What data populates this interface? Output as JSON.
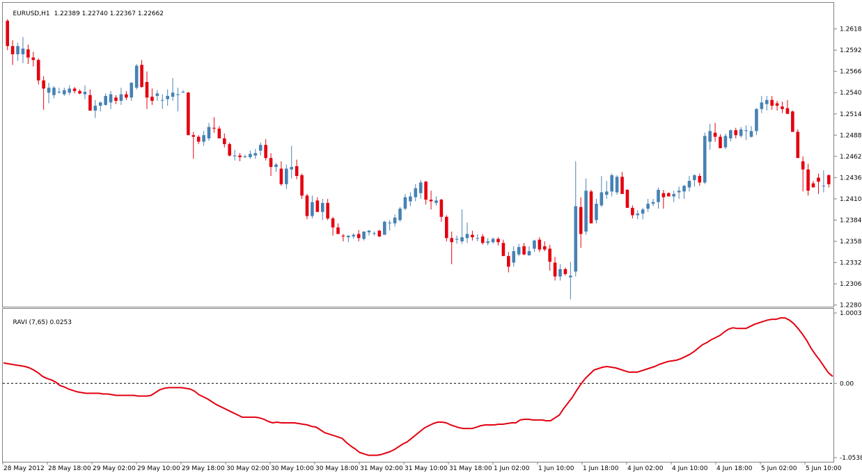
{
  "symbol_label": "EURUSD,H1",
  "ohlc_label": "1.22389 1.22740 1.22367 1.22662",
  "indicator_label": "RAVI (7,65) 0.0253",
  "colors": {
    "up": "#4682b4",
    "down": "#e4000f",
    "line": "#e4000f",
    "grid": "#808080",
    "frame": "#808080"
  },
  "chart_data": [
    {
      "type": "candlestick",
      "title": "EURUSD,H1",
      "y_ticks": [
        "1.26180",
        "1.25920",
        "1.25660",
        "1.25400",
        "1.25140",
        "1.24880",
        "1.24620",
        "1.24360",
        "1.24100",
        "1.23840",
        "1.23580",
        "1.23320",
        "1.23060",
        "1.22800"
      ],
      "ylim": [
        1.2278,
        1.265
      ],
      "x_ticks": [
        "28 May 2012",
        "28 May 18:00",
        "29 May 02:00",
        "29 May 10:00",
        "29 May 18:00",
        "30 May 02:00",
        "30 May 10:00",
        "30 May 18:00",
        "31 May 02:00",
        "31 May 10:00",
        "31 May 18:00",
        "1 Jun 02:00",
        "1 Jun 10:00",
        "1 Jun 18:00",
        "4 Jun 02:00",
        "4 Jun 10:00",
        "4 Jun 18:00",
        "5 Jun 02:00",
        "5 Jun 10:00"
      ],
      "current_bar": {
        "open": 1.22389,
        "high": 1.2274,
        "low": 1.22367,
        "close": 1.22662
      },
      "ohlc": [
        [
          1.2628,
          1.263,
          1.2592,
          1.2597
        ],
        [
          1.2597,
          1.2604,
          1.2574,
          1.2587
        ],
        [
          1.2587,
          1.2601,
          1.2579,
          1.2597
        ],
        [
          1.2587,
          1.2608,
          1.2576,
          1.2594
        ],
        [
          1.2593,
          1.2599,
          1.2575,
          1.2583
        ],
        [
          1.2583,
          1.259,
          1.2572,
          1.258
        ],
        [
          1.258,
          1.2582,
          1.255,
          1.2555
        ],
        [
          1.2555,
          1.256,
          1.2519,
          1.2545
        ],
        [
          1.254,
          1.2552,
          1.2527,
          1.2546
        ],
        [
          1.2537,
          1.2548,
          1.2533,
          1.2546
        ],
        [
          1.2541,
          1.2546,
          1.2539,
          1.2541
        ],
        [
          1.2538,
          1.2546,
          1.2536,
          1.2543
        ],
        [
          1.254,
          1.2549,
          1.2537,
          1.2545
        ],
        [
          1.2545,
          1.2547,
          1.2539,
          1.2542
        ],
        [
          1.2542,
          1.2544,
          1.2538,
          1.2539
        ],
        [
          1.2538,
          1.2549,
          1.2532,
          1.2541
        ],
        [
          1.2537,
          1.2544,
          1.2518,
          1.2518
        ],
        [
          1.2518,
          1.2531,
          1.2509,
          1.2524
        ],
        [
          1.2524,
          1.2529,
          1.2517,
          1.2528
        ],
        [
          1.2525,
          1.2539,
          1.2524,
          1.2536
        ],
        [
          1.2528,
          1.2542,
          1.252,
          1.2538
        ],
        [
          1.2534,
          1.2537,
          1.2526,
          1.253
        ],
        [
          1.253,
          1.2546,
          1.2525,
          1.2538
        ],
        [
          1.2538,
          1.2542,
          1.2531,
          1.2534
        ],
        [
          1.2534,
          1.2553,
          1.253,
          1.2552
        ],
        [
          1.2546,
          1.2575,
          1.2544,
          1.2573
        ],
        [
          1.2574,
          1.258,
          1.2546,
          1.2547
        ],
        [
          1.2553,
          1.2566,
          1.252,
          1.2534
        ],
        [
          1.2535,
          1.2545,
          1.2525,
          1.253
        ],
        [
          1.2536,
          1.2543,
          1.253,
          1.2539
        ],
        [
          1.2531,
          1.2538,
          1.252,
          1.2531
        ],
        [
          1.2532,
          1.2544,
          1.2524,
          1.2536
        ],
        [
          1.2535,
          1.2558,
          1.253,
          1.254
        ],
        [
          1.2537,
          1.2546,
          1.2517,
          1.2538
        ],
        [
          1.254,
          1.2543,
          1.254,
          1.2541
        ],
        [
          1.254,
          1.2541,
          1.2488,
          1.2488
        ],
        [
          1.2488,
          1.2492,
          1.2459,
          1.2486
        ],
        [
          1.2486,
          1.2488,
          1.2477,
          1.248
        ],
        [
          1.248,
          1.2493,
          1.2475,
          1.2488
        ],
        [
          1.2484,
          1.2503,
          1.2481,
          1.2498
        ],
        [
          1.2497,
          1.251,
          1.2491,
          1.2496
        ],
        [
          1.2496,
          1.2499,
          1.2484,
          1.2484
        ],
        [
          1.2484,
          1.249,
          1.2473,
          1.2477
        ],
        [
          1.2477,
          1.2479,
          1.2462,
          1.2463
        ],
        [
          1.2463,
          1.247,
          1.2457,
          1.2463
        ],
        [
          1.2463,
          1.2466,
          1.2456,
          1.2461
        ],
        [
          1.2461,
          1.2464,
          1.246,
          1.2462
        ],
        [
          1.2461,
          1.2469,
          1.2459,
          1.2465
        ],
        [
          1.2463,
          1.2471,
          1.2459,
          1.2466
        ],
        [
          1.2469,
          1.2479,
          1.2463,
          1.2476
        ],
        [
          1.2476,
          1.2483,
          1.2457,
          1.246
        ],
        [
          1.246,
          1.2466,
          1.2438,
          1.2449
        ],
        [
          1.2449,
          1.2454,
          1.2443,
          1.2452
        ],
        [
          1.2447,
          1.2456,
          1.2426,
          1.2428
        ],
        [
          1.2428,
          1.2452,
          1.2422,
          1.2447
        ],
        [
          1.2446,
          1.2475,
          1.2435,
          1.2449
        ],
        [
          1.245,
          1.2458,
          1.2434,
          1.2438
        ],
        [
          1.2439,
          1.2441,
          1.241,
          1.2414
        ],
        [
          1.2414,
          1.2416,
          1.2385,
          1.2389
        ],
        [
          1.2389,
          1.2414,
          1.2386,
          1.2406
        ],
        [
          1.2408,
          1.2412,
          1.2394,
          1.2394
        ],
        [
          1.2394,
          1.241,
          1.2384,
          1.2405
        ],
        [
          1.2405,
          1.241,
          1.2384,
          1.2386
        ],
        [
          1.2386,
          1.2388,
          1.2365,
          1.2375
        ],
        [
          1.2375,
          1.238,
          1.2367,
          1.2367
        ],
        [
          1.2365,
          1.2367,
          1.2358,
          1.2364
        ],
        [
          1.2363,
          1.2365,
          1.2357,
          1.2365
        ],
        [
          1.2364,
          1.2368,
          1.2361,
          1.2366
        ],
        [
          1.2367,
          1.2372,
          1.2358,
          1.2362
        ],
        [
          1.2361,
          1.237,
          1.2359,
          1.237
        ],
        [
          1.2369,
          1.2372,
          1.2365,
          1.2371
        ],
        [
          1.2368,
          1.237,
          1.2365,
          1.2368
        ],
        [
          1.2371,
          1.2372,
          1.2363,
          1.2364
        ],
        [
          1.2366,
          1.2383,
          1.2366,
          1.2382
        ],
        [
          1.238,
          1.2384,
          1.2371,
          1.2381
        ],
        [
          1.238,
          1.2391,
          1.2376,
          1.2387
        ],
        [
          1.2384,
          1.24,
          1.2382,
          1.2398
        ],
        [
          1.2398,
          1.2416,
          1.2396,
          1.2412
        ],
        [
          1.2407,
          1.2418,
          1.2401,
          1.2413
        ],
        [
          1.2412,
          1.2428,
          1.2407,
          1.2423
        ],
        [
          1.2417,
          1.2433,
          1.241,
          1.243
        ],
        [
          1.2431,
          1.2432,
          1.2403,
          1.2409
        ],
        [
          1.2409,
          1.242,
          1.2397,
          1.2407
        ],
        [
          1.2405,
          1.2413,
          1.2402,
          1.2408
        ],
        [
          1.2409,
          1.241,
          1.2382,
          1.2388
        ],
        [
          1.2388,
          1.239,
          1.2358,
          1.2362
        ],
        [
          1.2362,
          1.237,
          1.233,
          1.2357
        ],
        [
          1.236,
          1.2365,
          1.2355,
          1.2361
        ],
        [
          1.2358,
          1.2397,
          1.2355,
          1.2363
        ],
        [
          1.2362,
          1.2381,
          1.2356,
          1.2367
        ],
        [
          1.2366,
          1.2371,
          1.2359,
          1.2363
        ],
        [
          1.2362,
          1.2367,
          1.2358,
          1.2362
        ],
        [
          1.2364,
          1.2367,
          1.2354,
          1.2356
        ],
        [
          1.2356,
          1.2362,
          1.2353,
          1.2358
        ],
        [
          1.2357,
          1.2363,
          1.2355,
          1.2361
        ],
        [
          1.2361,
          1.2363,
          1.2353,
          1.2357
        ],
        [
          1.2356,
          1.236,
          1.234,
          1.234
        ],
        [
          1.234,
          1.2345,
          1.232,
          1.2327
        ],
        [
          1.2332,
          1.2352,
          1.2327,
          1.2346
        ],
        [
          1.2342,
          1.2355,
          1.234,
          1.2351
        ],
        [
          1.2352,
          1.2356,
          1.2341,
          1.2342
        ],
        [
          1.2341,
          1.2352,
          1.234,
          1.2346
        ],
        [
          1.2349,
          1.236,
          1.2345,
          1.2359
        ],
        [
          1.236,
          1.2363,
          1.2345,
          1.2348
        ],
        [
          1.2352,
          1.2358,
          1.2346,
          1.2348
        ],
        [
          1.2349,
          1.2354,
          1.2322,
          1.2333
        ],
        [
          1.2332,
          1.2339,
          1.231,
          1.2315
        ],
        [
          1.2315,
          1.233,
          1.231,
          1.2324
        ],
        [
          1.2324,
          1.2326,
          1.2316,
          1.2318
        ],
        [
          1.2314,
          1.2333,
          1.2287,
          1.2316
        ],
        [
          1.2321,
          1.2456,
          1.2315,
          1.2401
        ],
        [
          1.24,
          1.2412,
          1.235,
          1.2367
        ],
        [
          1.237,
          1.2435,
          1.2366,
          1.242
        ],
        [
          1.2419,
          1.2421,
          1.238,
          1.238
        ],
        [
          1.2384,
          1.241,
          1.238,
          1.2404
        ],
        [
          1.2402,
          1.2438,
          1.24,
          1.2418
        ],
        [
          1.2415,
          1.2432,
          1.241,
          1.2419
        ],
        [
          1.2419,
          1.2441,
          1.2413,
          1.2439
        ],
        [
          1.2418,
          1.2439,
          1.2415,
          1.2437
        ],
        [
          1.2437,
          1.2443,
          1.2416,
          1.2416
        ],
        [
          1.2421,
          1.2422,
          1.2399,
          1.2399
        ],
        [
          1.2399,
          1.2402,
          1.2386,
          1.239
        ],
        [
          1.239,
          1.2396,
          1.2385,
          1.2392
        ],
        [
          1.2392,
          1.2399,
          1.2385,
          1.2397
        ],
        [
          1.2398,
          1.241,
          1.2394,
          1.2404
        ],
        [
          1.2404,
          1.241,
          1.2401,
          1.2406
        ],
        [
          1.2406,
          1.2424,
          1.2398,
          1.2421
        ],
        [
          1.2417,
          1.2421,
          1.2398,
          1.2412
        ],
        [
          1.2417,
          1.2418,
          1.2413,
          1.2413
        ],
        [
          1.2413,
          1.242,
          1.2406,
          1.2416
        ],
        [
          1.2418,
          1.2425,
          1.241,
          1.242
        ],
        [
          1.2419,
          1.2427,
          1.241,
          1.2426
        ],
        [
          1.2424,
          1.2438,
          1.2419,
          1.2432
        ],
        [
          1.2433,
          1.244,
          1.2425,
          1.2439
        ],
        [
          1.2438,
          1.2441,
          1.2426,
          1.243
        ],
        [
          1.243,
          1.2491,
          1.2428,
          1.2487
        ],
        [
          1.248,
          1.2502,
          1.247,
          1.2493
        ],
        [
          1.2491,
          1.2503,
          1.248,
          1.2486
        ],
        [
          1.2486,
          1.2489,
          1.2472,
          1.2472
        ],
        [
          1.2473,
          1.249,
          1.2471,
          1.2487
        ],
        [
          1.2484,
          1.2495,
          1.248,
          1.2494
        ],
        [
          1.2494,
          1.2497,
          1.2484,
          1.2488
        ],
        [
          1.2487,
          1.2498,
          1.2485,
          1.2495
        ],
        [
          1.2493,
          1.25,
          1.2482,
          1.2494
        ],
        [
          1.2486,
          1.2499,
          1.2485,
          1.2493
        ],
        [
          1.2493,
          1.2521,
          1.2488,
          1.252
        ],
        [
          1.252,
          1.2536,
          1.2515,
          1.2528
        ],
        [
          1.2526,
          1.2536,
          1.2518,
          1.2531
        ],
        [
          1.2531,
          1.2536,
          1.2519,
          1.2524
        ],
        [
          1.2527,
          1.253,
          1.2518,
          1.2524
        ],
        [
          1.2523,
          1.2529,
          1.2515,
          1.252
        ],
        [
          1.2521,
          1.2531,
          1.2514,
          1.2514
        ],
        [
          1.2517,
          1.2518,
          1.2493,
          1.2492
        ],
        [
          1.2492,
          1.2495,
          1.246,
          1.246
        ],
        [
          1.2456,
          1.2462,
          1.2419,
          1.2446
        ],
        [
          1.2446,
          1.2453,
          1.2414,
          1.242
        ],
        [
          1.2429,
          1.2432,
          1.2424,
          1.2424
        ],
        [
          1.2436,
          1.2441,
          1.2416,
          1.2431
        ],
        [
          1.2426,
          1.2445,
          1.2418,
          1.2426
        ],
        [
          1.2439,
          1.244,
          1.2424,
          1.2428
        ]
      ]
    },
    {
      "type": "line",
      "title": "RAVI (7,65) 0.0253",
      "y_ticks": [
        "1.0003",
        "0.00",
        "-1.0538"
      ],
      "ylim": [
        -1.0538,
        1.0003
      ],
      "reference_line": 0.0,
      "series": [
        {
          "values": [
            0.29,
            0.28,
            0.27,
            0.26,
            0.25,
            0.24,
            0.22,
            0.19,
            0.15,
            0.1,
            0.07,
            0.05,
            0.02,
            -0.03,
            -0.05,
            -0.08,
            -0.1,
            -0.12,
            -0.13,
            -0.14,
            -0.14,
            -0.14,
            -0.14,
            -0.15,
            -0.15,
            -0.16,
            -0.17,
            -0.17,
            -0.17,
            -0.17,
            -0.17,
            -0.18,
            -0.18,
            -0.18,
            -0.17,
            -0.13,
            -0.09,
            -0.07,
            -0.06,
            -0.06,
            -0.06,
            -0.06,
            -0.07,
            -0.08,
            -0.11,
            -0.16,
            -0.19,
            -0.22,
            -0.26,
            -0.3,
            -0.33,
            -0.36,
            -0.39,
            -0.42,
            -0.45,
            -0.48,
            -0.48,
            -0.48,
            -0.48,
            -0.49,
            -0.51,
            -0.54,
            -0.56,
            -0.55,
            -0.56,
            -0.56,
            -0.56,
            -0.56,
            -0.57,
            -0.58,
            -0.59,
            -0.61,
            -0.62,
            -0.66,
            -0.7,
            -0.72,
            -0.74,
            -0.76,
            -0.78,
            -0.84,
            -0.89,
            -0.93,
            -0.98,
            -1.0,
            -1.02,
            -1.02,
            -1.02,
            -1.01,
            -0.99,
            -0.97,
            -0.94,
            -0.9,
            -0.86,
            -0.83,
            -0.78,
            -0.73,
            -0.68,
            -0.63,
            -0.6,
            -0.57,
            -0.55,
            -0.55,
            -0.56,
            -0.59,
            -0.61,
            -0.63,
            -0.64,
            -0.64,
            -0.64,
            -0.62,
            -0.6,
            -0.59,
            -0.59,
            -0.59,
            -0.58,
            -0.58,
            -0.57,
            -0.56,
            -0.56,
            -0.52,
            -0.51,
            -0.51,
            -0.52,
            -0.52,
            -0.52,
            -0.53,
            -0.53,
            -0.49,
            -0.45,
            -0.36,
            -0.28,
            -0.2,
            -0.1,
            -0.01,
            0.07,
            0.13,
            0.19,
            0.21,
            0.23,
            0.24,
            0.23,
            0.22,
            0.2,
            0.18,
            0.16,
            0.16,
            0.16,
            0.18,
            0.2,
            0.22,
            0.24,
            0.27,
            0.29,
            0.31,
            0.32,
            0.33,
            0.35,
            0.38,
            0.41,
            0.45,
            0.5,
            0.55,
            0.58,
            0.62,
            0.65,
            0.68,
            0.73,
            0.77,
            0.79,
            0.78,
            0.78,
            0.78,
            0.81,
            0.84,
            0.86,
            0.88,
            0.9,
            0.91,
            0.91,
            0.93,
            0.93,
            0.9,
            0.85,
            0.78,
            0.7,
            0.61,
            0.5,
            0.41,
            0.33,
            0.24,
            0.15,
            0.1
          ]
        }
      ]
    }
  ]
}
